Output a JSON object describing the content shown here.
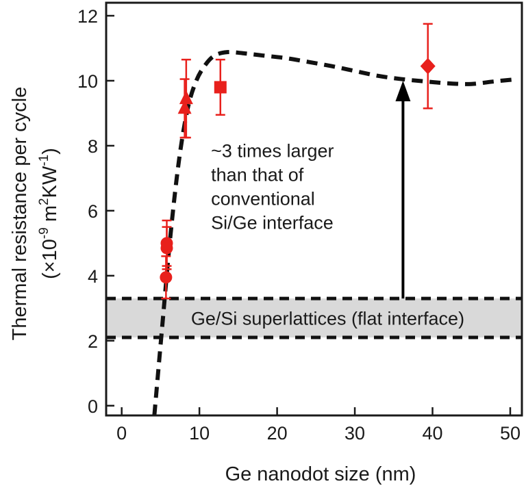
{
  "chart_data": {
    "type": "scatter",
    "xlabel": "Ge nanodot size  (nm)",
    "ylabel_line1": "Thermal resistance per cycle",
    "ylabel_line2": {
      "open": "(×10",
      "exp1": "-9",
      "mid": " m",
      "exp2": "2",
      "unit": "KW",
      "exp3": "-1",
      "close": ")"
    },
    "xlim": [
      -2,
      51.5
    ],
    "ylim": [
      -0.3,
      12.4
    ],
    "xticks": [
      0,
      10,
      20,
      30,
      40,
      50
    ],
    "yticks": [
      0,
      2,
      4,
      6,
      8,
      10,
      12
    ],
    "grid": false,
    "series": [
      {
        "marker": "circle",
        "color": "#e8201c",
        "points": [
          {
            "x": 5.7,
            "y": 3.95,
            "err": 0.65
          },
          {
            "x": 5.8,
            "y": 4.85,
            "err": 0.65
          },
          {
            "x": 5.8,
            "y": 5.0,
            "err": 0.7
          }
        ]
      },
      {
        "marker": "triangle",
        "color": "#e8201c",
        "points": [
          {
            "x": 8.1,
            "y": 9.15,
            "err": 0.9
          },
          {
            "x": 8.3,
            "y": 9.45,
            "err": 1.2
          }
        ]
      },
      {
        "marker": "square",
        "color": "#e8201c",
        "points": [
          {
            "x": 12.7,
            "y": 9.8,
            "err": 0.85
          }
        ]
      },
      {
        "marker": "diamond",
        "color": "#e8201c",
        "points": [
          {
            "x": 39.4,
            "y": 10.45,
            "err": 1.3
          }
        ]
      }
    ],
    "trend_curve": {
      "style": "dashed",
      "color": "#111111",
      "x": [
        4.2,
        5.2,
        6.3,
        7.4,
        8.5,
        9.6,
        10.8,
        12.0,
        13.6,
        15.5,
        18,
        21,
        24,
        27,
        30,
        33,
        36,
        39,
        42,
        45,
        48,
        51
      ],
      "y": [
        -0.3,
        2.4,
        5.3,
        7.6,
        9.15,
        10.0,
        10.5,
        10.78,
        10.88,
        10.85,
        10.78,
        10.7,
        10.58,
        10.45,
        10.3,
        10.15,
        10.05,
        9.98,
        9.92,
        9.9,
        9.98,
        10.05
      ]
    },
    "band": {
      "y_low": 2.1,
      "y_high": 3.3,
      "fill": "#d9d9d9",
      "label": "Ge/Si superlattices (flat interface)"
    },
    "arrow": {
      "x": 36.2,
      "y_from": 3.3,
      "y_to": 10.0
    },
    "annotation": [
      "~3 times larger",
      "than that of",
      "conventional",
      "Si/Ge interface"
    ]
  }
}
